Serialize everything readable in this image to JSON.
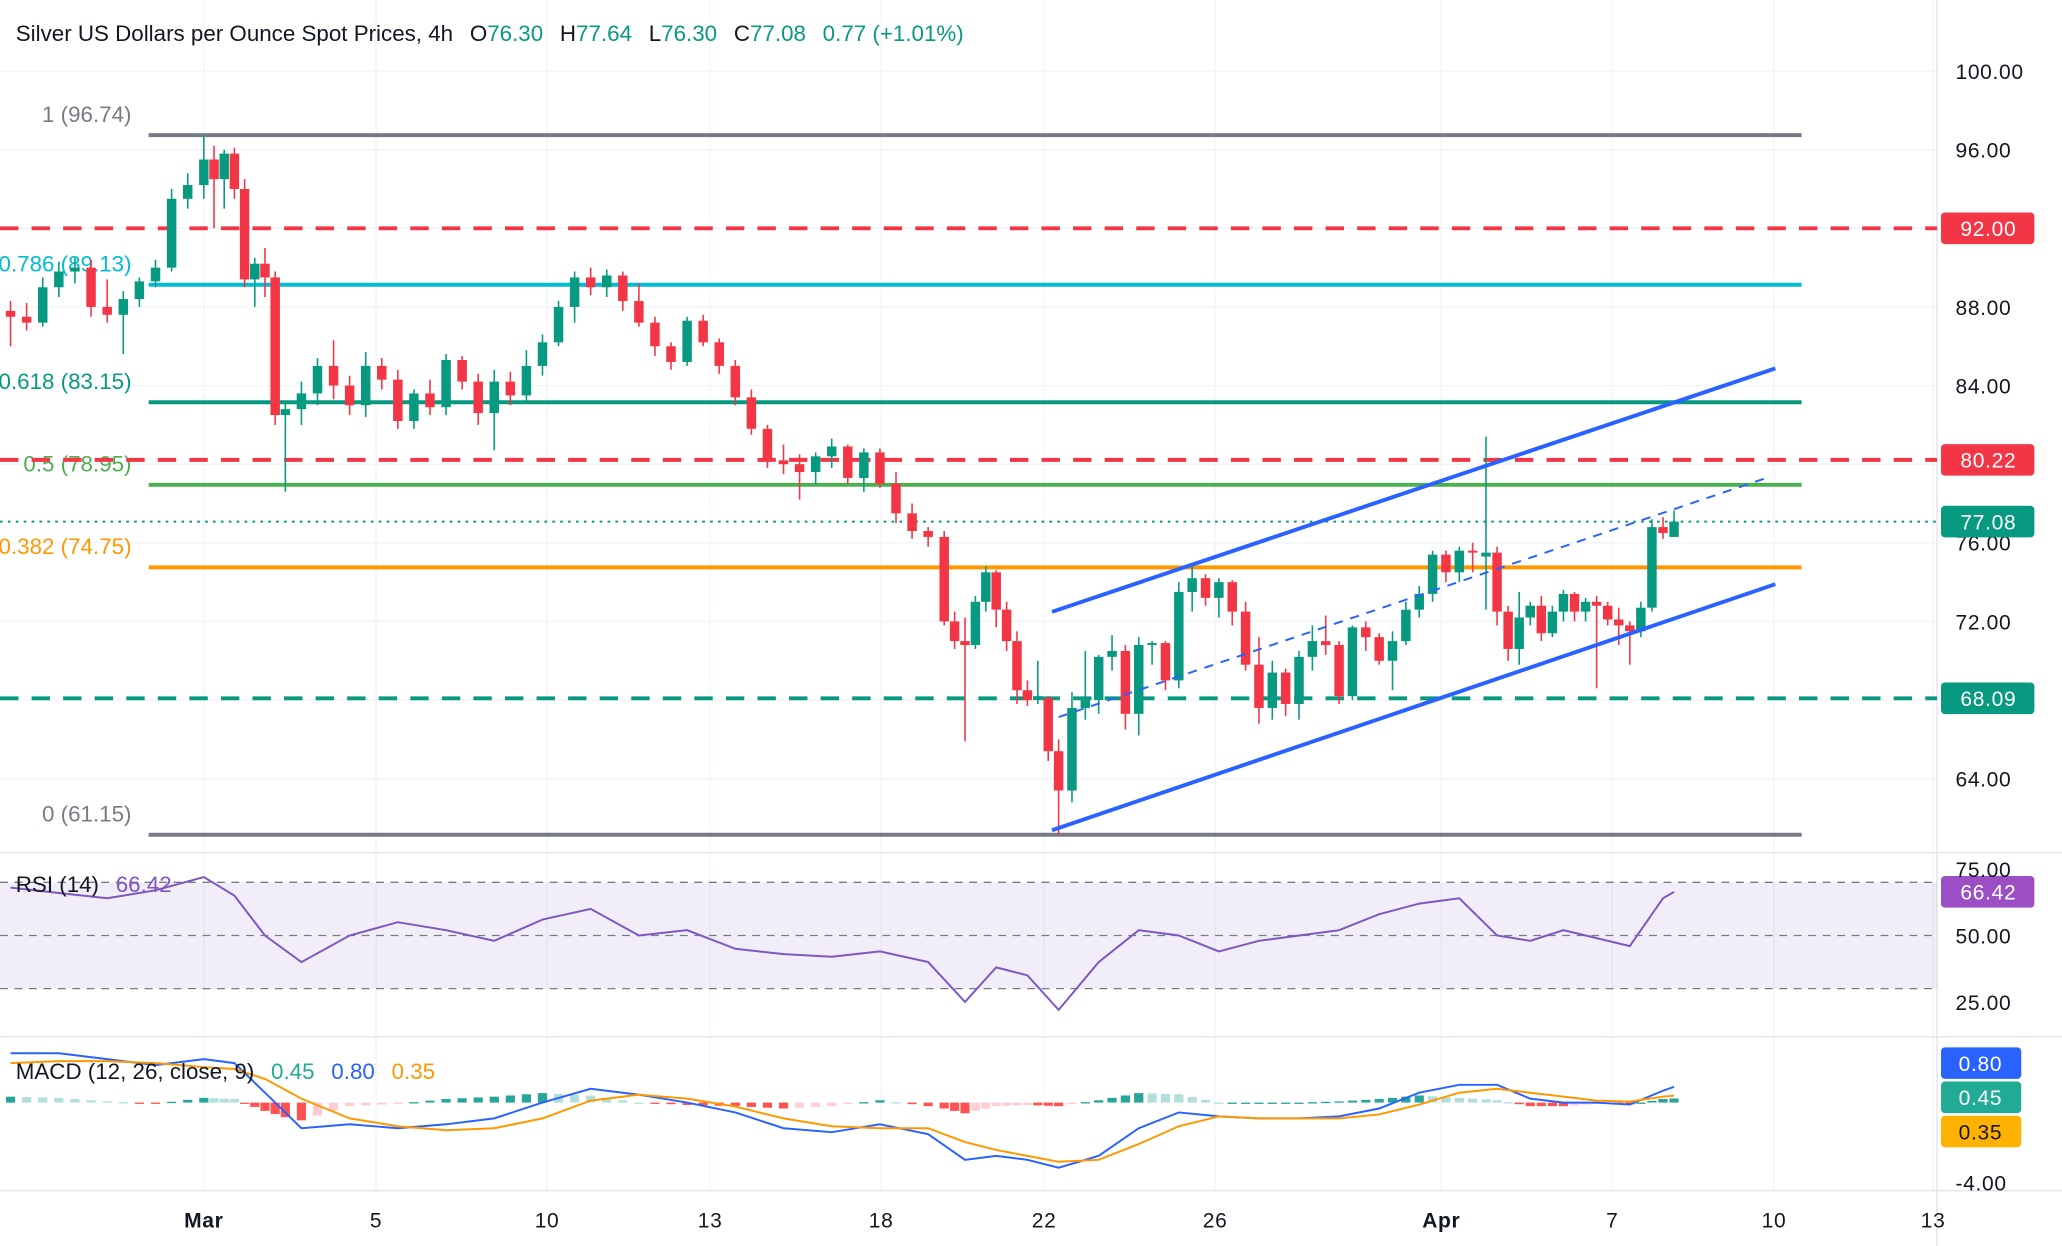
{
  "header": {
    "symbol": "Silver US Dollars per Ounce Spot Prices, 4h",
    "o_label": "O",
    "o": "76.30",
    "h_label": "H",
    "h": "77.64",
    "l_label": "L",
    "l": "76.30",
    "c_label": "C",
    "c": "77.08",
    "change": "0.77 (+1.01%)"
  },
  "colors": {
    "up": "#089981",
    "down": "#f23645",
    "channel": "#2962ff",
    "rsi": "#7e57c2",
    "macd": "#2962ff",
    "signal": "#ff9800"
  },
  "chart_data": [
    {
      "type": "candlestick",
      "title": "Silver US Dollars per Ounce Spot Prices, 4h",
      "ylim": [
        59,
        101
      ],
      "y_ticks": [
        "100.00",
        "96.00",
        "88.00",
        "84.00",
        "76.00",
        "72.00",
        "64.00"
      ],
      "x_ticks": [
        "Mar",
        "5",
        "10",
        "13",
        "18",
        "22",
        "26",
        "Apr",
        "7",
        "10",
        "13"
      ],
      "grid": true,
      "ohlc": [
        [
          87.8,
          88.3,
          86.0,
          87.5
        ],
        [
          87.5,
          88.2,
          86.8,
          87.2
        ],
        [
          87.2,
          89.5,
          87.0,
          89.0
        ],
        [
          89.0,
          90.3,
          88.5,
          89.8
        ],
        [
          89.8,
          90.5,
          89.2,
          90.0
        ],
        [
          90.0,
          90.4,
          87.5,
          88.0
        ],
        [
          88.0,
          89.4,
          87.2,
          87.6
        ],
        [
          87.6,
          88.8,
          85.6,
          88.4
        ],
        [
          88.4,
          89.5,
          88.0,
          89.3
        ],
        [
          89.3,
          90.4,
          89.0,
          90.0
        ],
        [
          90.0,
          94.0,
          89.8,
          93.5
        ],
        [
          93.5,
          94.8,
          93.0,
          94.2
        ],
        [
          94.2,
          96.74,
          93.5,
          95.5
        ],
        [
          95.5,
          96.2,
          92.0,
          94.5
        ],
        [
          94.5,
          96.0,
          93.0,
          95.8
        ],
        [
          95.8,
          96.1,
          93.5,
          94.0
        ],
        [
          94.0,
          94.5,
          89.0,
          89.4
        ],
        [
          89.4,
          90.5,
          88.0,
          90.2
        ],
        [
          90.2,
          91.0,
          88.5,
          89.5
        ],
        [
          89.5,
          89.8,
          82.0,
          82.5
        ],
        [
          82.5,
          83.2,
          78.6,
          82.8
        ],
        [
          82.8,
          84.2,
          82.0,
          83.6
        ],
        [
          83.6,
          85.4,
          83.0,
          85.0
        ],
        [
          85.0,
          86.3,
          83.3,
          84.0
        ],
        [
          84.0,
          84.5,
          82.5,
          83.0
        ],
        [
          83.0,
          85.7,
          82.4,
          85.0
        ],
        [
          85.0,
          85.4,
          83.8,
          84.3
        ],
        [
          84.3,
          84.8,
          81.8,
          82.2
        ],
        [
          82.2,
          83.8,
          81.8,
          83.6
        ],
        [
          83.6,
          84.3,
          82.5,
          82.9
        ],
        [
          82.9,
          85.6,
          82.5,
          85.3
        ],
        [
          85.3,
          85.5,
          83.8,
          84.2
        ],
        [
          84.2,
          84.6,
          82.0,
          82.6
        ],
        [
          82.6,
          84.8,
          80.7,
          84.2
        ],
        [
          84.2,
          84.7,
          83.0,
          83.5
        ],
        [
          83.5,
          85.8,
          83.2,
          85.0
        ],
        [
          85.0,
          86.6,
          84.5,
          86.2
        ],
        [
          86.2,
          88.3,
          86.0,
          88.0
        ],
        [
          88.0,
          89.8,
          87.2,
          89.5
        ],
        [
          89.5,
          90.0,
          88.6,
          89.0
        ],
        [
          89.0,
          89.9,
          88.5,
          89.6
        ],
        [
          89.6,
          89.8,
          87.8,
          88.3
        ],
        [
          88.3,
          89.2,
          87.0,
          87.2
        ],
        [
          87.2,
          87.5,
          85.5,
          86.0
        ],
        [
          86.0,
          86.2,
          84.8,
          85.2
        ],
        [
          85.2,
          87.5,
          85.0,
          87.3
        ],
        [
          87.3,
          87.6,
          86.0,
          86.2
        ],
        [
          86.2,
          86.4,
          84.6,
          85.0
        ],
        [
          85.0,
          85.3,
          83.0,
          83.4
        ],
        [
          83.4,
          83.8,
          81.5,
          81.8
        ],
        [
          81.8,
          82.0,
          79.8,
          80.2
        ],
        [
          80.2,
          81.0,
          79.5,
          80.0
        ],
        [
          80.0,
          80.5,
          78.2,
          79.6
        ],
        [
          79.6,
          80.6,
          79.0,
          80.4
        ],
        [
          80.4,
          81.3,
          79.8,
          80.9
        ],
        [
          80.9,
          81.0,
          79.0,
          79.3
        ],
        [
          79.3,
          80.8,
          78.6,
          80.6
        ],
        [
          80.6,
          80.8,
          78.8,
          79.0
        ],
        [
          79.0,
          79.6,
          77.0,
          77.5
        ],
        [
          77.5,
          78.0,
          76.2,
          76.6
        ],
        [
          76.6,
          76.8,
          75.8,
          76.3
        ],
        [
          76.3,
          76.6,
          71.8,
          72.0
        ],
        [
          72.0,
          72.5,
          70.6,
          71.0
        ],
        [
          71.0,
          72.2,
          65.9,
          70.8
        ],
        [
          70.8,
          73.3,
          70.6,
          73.0
        ],
        [
          73.0,
          74.8,
          72.5,
          74.5
        ],
        [
          74.5,
          74.6,
          71.7,
          72.6
        ],
        [
          72.6,
          73.0,
          70.5,
          71.0
        ],
        [
          71.0,
          71.5,
          67.8,
          68.5
        ],
        [
          68.5,
          69.0,
          67.7,
          68.0
        ],
        [
          68.0,
          70.0,
          67.8,
          68.2
        ],
        [
          68.1,
          68.2,
          64.9,
          65.4
        ],
        [
          65.4,
          66.0,
          61.15,
          63.4
        ],
        [
          63.4,
          68.4,
          62.8,
          67.6
        ],
        [
          67.6,
          70.5,
          67.0,
          68.0
        ],
        [
          68.0,
          70.3,
          67.3,
          70.2
        ],
        [
          70.2,
          71.3,
          69.5,
          70.5
        ],
        [
          70.5,
          70.8,
          66.5,
          67.3
        ],
        [
          67.3,
          71.2,
          66.2,
          70.8
        ],
        [
          70.8,
          71.0,
          69.8,
          70.9
        ],
        [
          70.9,
          71.0,
          68.5,
          69.0
        ],
        [
          69.0,
          74.0,
          68.6,
          73.5
        ],
        [
          73.5,
          74.9,
          72.5,
          74.2
        ],
        [
          74.2,
          74.4,
          72.8,
          73.2
        ],
        [
          73.2,
          74.2,
          72.2,
          74.0
        ],
        [
          74.0,
          74.1,
          71.8,
          72.5
        ],
        [
          72.5,
          73.0,
          69.5,
          69.8
        ],
        [
          69.8,
          71.2,
          66.8,
          67.6
        ],
        [
          67.6,
          70.0,
          67.0,
          69.4
        ],
        [
          69.4,
          69.6,
          67.2,
          67.8
        ],
        [
          67.8,
          70.5,
          67.0,
          70.2
        ],
        [
          70.2,
          71.8,
          69.5,
          71.0
        ],
        [
          71.0,
          72.3,
          70.3,
          70.8
        ],
        [
          70.8,
          71.0,
          67.8,
          68.2
        ],
        [
          68.2,
          71.8,
          68.0,
          71.7
        ],
        [
          71.7,
          72.0,
          70.5,
          71.2
        ],
        [
          71.2,
          71.4,
          69.8,
          70.0
        ],
        [
          70.0,
          71.5,
          68.5,
          71.0
        ],
        [
          71.0,
          73.0,
          70.8,
          72.6
        ],
        [
          72.6,
          73.8,
          72.2,
          73.4
        ],
        [
          73.4,
          75.6,
          73.0,
          75.4
        ],
        [
          75.4,
          75.6,
          74.0,
          74.5
        ],
        [
          74.5,
          75.8,
          74.0,
          75.6
        ],
        [
          75.6,
          76.0,
          74.5,
          75.5
        ],
        [
          75.3,
          81.4,
          72.6,
          75.5
        ],
        [
          75.5,
          75.8,
          71.8,
          72.5
        ],
        [
          72.5,
          72.8,
          70.0,
          70.6
        ],
        [
          70.6,
          73.5,
          69.8,
          72.2
        ],
        [
          72.2,
          73.0,
          71.8,
          72.8
        ],
        [
          72.8,
          73.3,
          71.0,
          71.4
        ],
        [
          71.4,
          72.8,
          71.2,
          72.5
        ],
        [
          72.5,
          73.6,
          72.0,
          73.4
        ],
        [
          73.4,
          73.5,
          72.0,
          72.5
        ],
        [
          72.5,
          73.2,
          72.0,
          73.0
        ],
        [
          73.0,
          73.3,
          68.6,
          72.8
        ],
        [
          72.8,
          73.0,
          71.8,
          72.1
        ],
        [
          72.1,
          72.7,
          70.8,
          71.8
        ],
        [
          71.8,
          72.0,
          69.8,
          71.5
        ],
        [
          71.5,
          73.0,
          71.2,
          72.7
        ],
        [
          72.7,
          77.2,
          72.5,
          76.8
        ],
        [
          76.8,
          77.3,
          76.2,
          76.5
        ],
        [
          76.3,
          77.64,
          76.3,
          77.08
        ]
      ],
      "levels": [
        {
          "label": "1 (96.74)",
          "price": 96.74,
          "color": "#787b86",
          "style": "solid"
        },
        {
          "label": "0.786 (89.13)",
          "price": 89.13,
          "color": "#00bcd4",
          "style": "solid"
        },
        {
          "label": "0.618 (83.15)",
          "price": 83.15,
          "color": "#089981",
          "style": "solid"
        },
        {
          "label": "0.5 (78.95)",
          "price": 78.95,
          "color": "#4caf50",
          "style": "solid"
        },
        {
          "label": "0.382 (74.75)",
          "price": 74.75,
          "color": "#ff9800",
          "style": "solid"
        },
        {
          "label": "0 (61.15)",
          "price": 61.15,
          "color": "#787b86",
          "style": "solid"
        }
      ],
      "price_badges": [
        {
          "value": "92.00",
          "price": 92.0,
          "color": "#f23645",
          "style": "dashed"
        },
        {
          "value": "80.22",
          "price": 80.22,
          "color": "#f23645",
          "style": "dashed"
        },
        {
          "value": "77.08",
          "price": 77.08,
          "color": "#089981",
          "style": "dotted"
        },
        {
          "value": "68.09",
          "price": 68.09,
          "color": "#089981",
          "style": "dashed"
        }
      ]
    },
    {
      "type": "line",
      "title": "RSI (14)",
      "current": "66.42",
      "ylim": [
        15,
        85
      ],
      "y_ticks": [
        "75.00",
        "50.00",
        "25.00"
      ],
      "bands": [
        70,
        50,
        30
      ],
      "values": [
        68,
        66,
        64,
        67,
        72,
        65,
        50,
        40,
        50,
        55,
        52,
        48,
        56,
        60,
        50,
        52,
        45,
        43,
        42,
        44,
        40,
        25,
        38,
        35,
        22,
        40,
        52,
        50,
        44,
        48,
        50,
        52,
        58,
        62,
        64,
        50,
        48,
        52,
        49,
        46,
        64,
        66.42
      ]
    },
    {
      "type": "line",
      "title": "MACD (12, 26, close, 9)",
      "hist_value": "0.45",
      "macd_value": "0.80",
      "signal_value": "0.35",
      "y_ticks": [
        "-4.00"
      ],
      "macd": [
        2.5,
        2.5,
        2.2,
        1.9,
        2.2,
        2.0,
        0.5,
        -1.3,
        -1.1,
        -1.3,
        -1.1,
        -0.8,
        0,
        0.7,
        0.4,
        0,
        -0.5,
        -1.3,
        -1.5,
        -1.1,
        -1.6,
        -2.9,
        -2.7,
        -2.9,
        -3.3,
        -2.7,
        -1.3,
        -0.5,
        -0.7,
        -0.8,
        -0.8,
        -0.7,
        -0.3,
        0.5,
        0.9,
        0.9,
        0.2,
        0,
        0,
        -0.1,
        0.6,
        0.8
      ],
      "signal": [
        2.0,
        2.1,
        2.1,
        2.0,
        1.8,
        1.7,
        1.2,
        0.2,
        -0.8,
        -1.2,
        -1.4,
        -1.3,
        -0.8,
        0.1,
        0.4,
        0.2,
        -0.2,
        -0.8,
        -1.2,
        -1.3,
        -1.3,
        -2.0,
        -2.4,
        -2.7,
        -3.0,
        -2.9,
        -2.1,
        -1.2,
        -0.7,
        -0.8,
        -0.8,
        -0.8,
        -0.6,
        -0.1,
        0.5,
        0.7,
        0.5,
        0.3,
        0.1,
        0.05,
        0.3,
        0.35
      ]
    }
  ]
}
